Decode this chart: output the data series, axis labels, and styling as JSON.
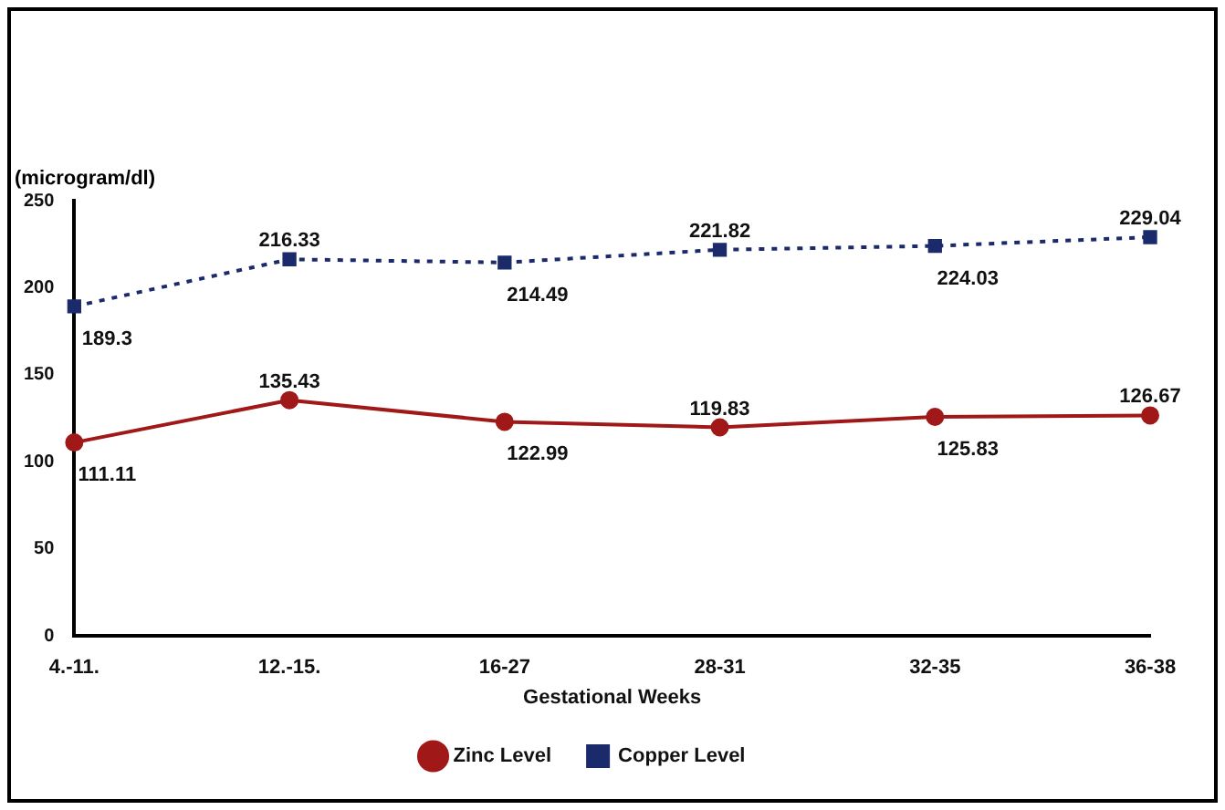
{
  "chart_data": {
    "type": "line",
    "xlabel": "Gestational Weeks",
    "ylabel": "(microgram/dl)",
    "categories": [
      "4.-11.",
      "12.-15.",
      "16-27",
      "28-31",
      "32-35",
      "36-38"
    ],
    "ylim": [
      0,
      250
    ],
    "yticks": [
      0,
      50,
      100,
      150,
      200,
      250
    ],
    "grid": false,
    "legend": "bottom",
    "data_labels": true,
    "series": [
      {
        "name": "Zinc Level",
        "color": "#a01818",
        "marker": "circle",
        "line_style": "solid",
        "values": [
          111.11,
          135.43,
          122.99,
          119.83,
          125.83,
          126.67
        ]
      },
      {
        "name": "Copper Level",
        "color": "#1a2a6a",
        "marker": "square",
        "line_style": "dotted",
        "values": [
          189.3,
          216.33,
          214.49,
          221.82,
          224.03,
          229.04
        ]
      }
    ]
  }
}
